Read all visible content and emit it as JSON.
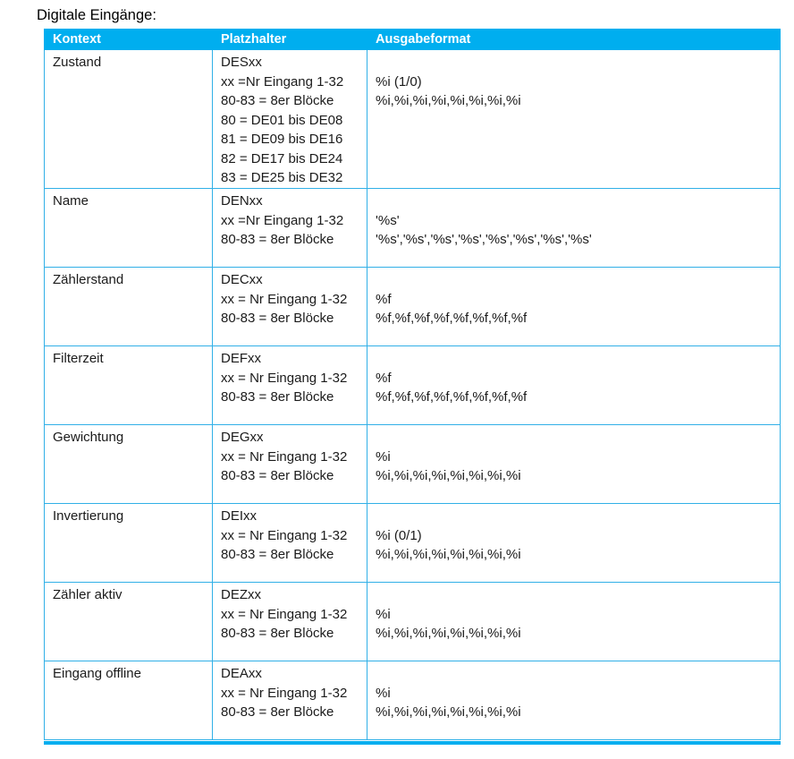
{
  "title": "Digitale Eingänge:",
  "colors": {
    "accent": "#00AEEF",
    "border": "#31B0E7",
    "text": "#1b1b1b"
  },
  "table": {
    "headers": [
      "Kontext",
      "Platzhalter",
      "Ausgabeformat"
    ],
    "rows": [
      {
        "kontext": "Zustand",
        "platzhalter": [
          "DESxx",
          "xx =Nr Eingang 1-32",
          "80-83 = 8er Blöcke",
          "80 = DE01 bis DE08",
          "81 = DE09 bis DE16",
          "82 = DE17 bis DE24",
          "83 = DE25 bis DE32"
        ],
        "ausgabeformat": [
          "",
          "%i (1/0)",
          "%i,%i,%i,%i,%i,%i,%i,%i"
        ]
      },
      {
        "kontext": "Name",
        "platzhalter": [
          "DENxx",
          "xx =Nr Eingang 1-32",
          "80-83 = 8er Blöcke"
        ],
        "ausgabeformat": [
          "",
          "'%s'",
          "'%s','%s','%s','%s','%s','%s','%s','%s'"
        ]
      },
      {
        "kontext": "Zählerstand",
        "platzhalter": [
          "DECxx",
          "xx = Nr Eingang 1-32",
          "80-83 = 8er Blöcke"
        ],
        "ausgabeformat": [
          "",
          "%f",
          "%f,%f,%f,%f,%f,%f,%f,%f"
        ]
      },
      {
        "kontext": "Filterzeit",
        "platzhalter": [
          "DEFxx",
          "xx = Nr Eingang 1-32",
          "80-83 = 8er Blöcke"
        ],
        "ausgabeformat": [
          "",
          "%f",
          "%f,%f,%f,%f,%f,%f,%f,%f"
        ]
      },
      {
        "kontext": "Gewichtung",
        "platzhalter": [
          "DEGxx",
          "xx = Nr Eingang 1-32",
          "80-83 = 8er Blöcke"
        ],
        "ausgabeformat": [
          "",
          "%i",
          "%i,%i,%i,%i,%i,%i,%i,%i"
        ]
      },
      {
        "kontext": "Invertierung",
        "platzhalter": [
          "DEIxx",
          "xx = Nr Eingang 1-32",
          "80-83 = 8er Blöcke"
        ],
        "ausgabeformat": [
          "",
          "%i (0/1)",
          "%i,%i,%i,%i,%i,%i,%i,%i"
        ]
      },
      {
        "kontext": "Zähler aktiv",
        "platzhalter": [
          "DEZxx",
          "xx = Nr Eingang 1-32",
          "80-83 = 8er Blöcke"
        ],
        "ausgabeformat": [
          "",
          "%i",
          "%i,%i,%i,%i,%i,%i,%i,%i"
        ]
      },
      {
        "kontext": "Eingang offline",
        "platzhalter": [
          "DEAxx",
          "xx = Nr Eingang 1-32",
          "80-83 = 8er Blöcke"
        ],
        "ausgabeformat": [
          "",
          "%i",
          "%i,%i,%i,%i,%i,%i,%i,%i"
        ]
      }
    ]
  }
}
